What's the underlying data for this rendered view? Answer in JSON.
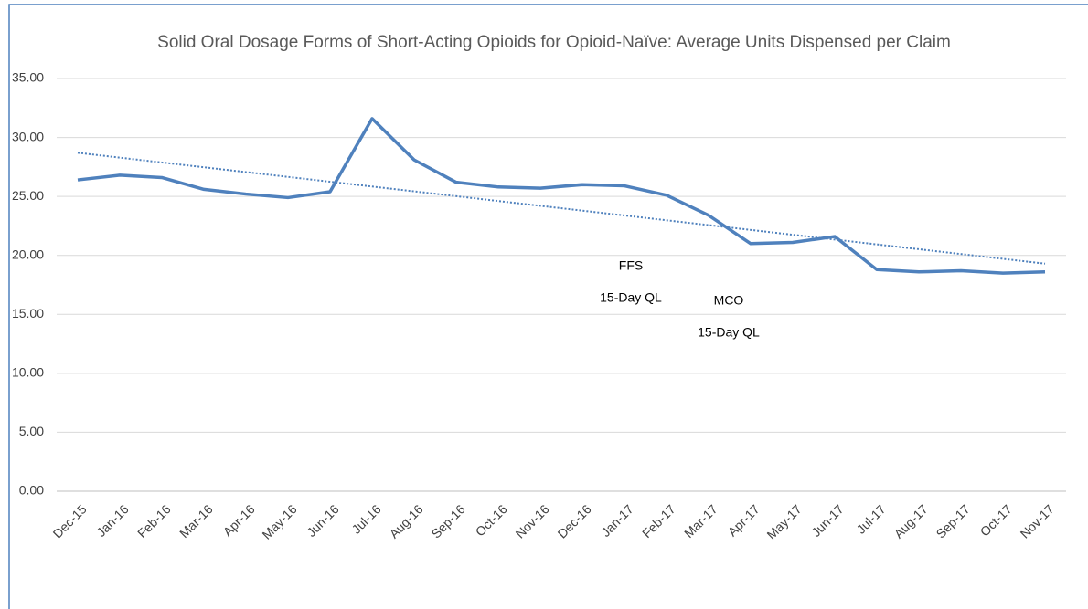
{
  "chart_data": {
    "type": "line",
    "title": "Solid Oral Dosage Forms of Short-Acting Opioids for Opioid-Naïve: Average Units Dispensed per Claim",
    "categories": [
      "Dec-15",
      "Jan-16",
      "Feb-16",
      "Mar-16",
      "Apr-16",
      "May-16",
      "Jun-16",
      "Jul-16",
      "Aug-16",
      "Sep-16",
      "Oct-16",
      "Nov-16",
      "Dec-16",
      "Jan-17",
      "Feb-17",
      "Mar-17",
      "Apr-17",
      "May-17",
      "Jun-17",
      "Jul-17",
      "Aug-17",
      "Sep-17",
      "Oct-17",
      "Nov-17"
    ],
    "series": [
      {
        "color": "#4f81bd",
        "values": [
          26.4,
          26.8,
          26.6,
          25.6,
          25.2,
          24.9,
          25.4,
          31.6,
          28.1,
          26.2,
          25.8,
          25.7,
          26.0,
          25.9,
          25.1,
          23.4,
          21.0,
          21.1,
          21.6,
          18.8,
          18.6,
          18.7,
          18.5,
          18.6
        ]
      }
    ],
    "trendline": {
      "color": "#4f81bd",
      "start": 28.7,
      "end": 19.3
    },
    "ylim": [
      0,
      35
    ],
    "yticks": [
      {
        "value": 0,
        "label": "0.00"
      },
      {
        "value": 5,
        "label": "5.00"
      },
      {
        "value": 10,
        "label": "10.00"
      },
      {
        "value": 15,
        "label": "15.00"
      },
      {
        "value": 20,
        "label": "20.00"
      },
      {
        "value": 25,
        "label": "25.00"
      },
      {
        "value": 30,
        "label": "30.00"
      },
      {
        "value": 35,
        "label": "35.00"
      }
    ],
    "grid": true,
    "annotations": [
      {
        "lines": [
          "FFS",
          "15-Day QL"
        ]
      },
      {
        "lines": [
          "MCO",
          "15-Day QL"
        ]
      }
    ]
  }
}
